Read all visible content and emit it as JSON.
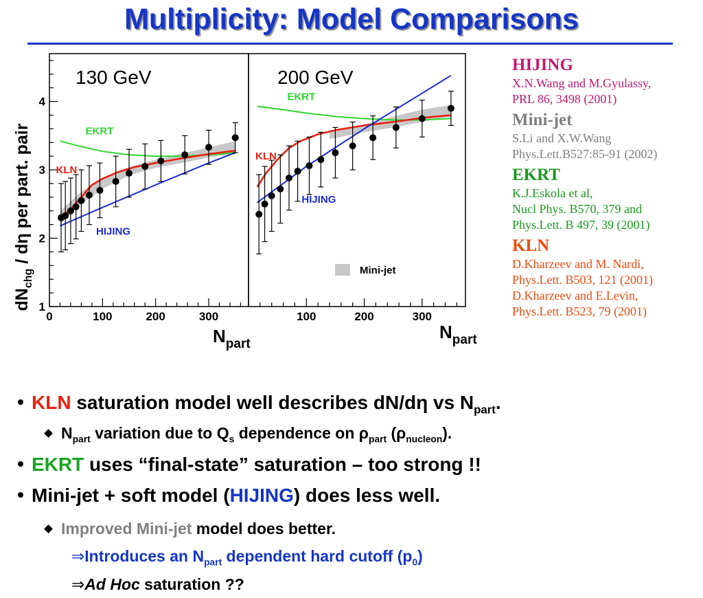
{
  "title": "Multiplicity: Model Comparisons",
  "chart_data": [
    {
      "type": "scatter",
      "panel_label": "130 GeV",
      "ylabel_main": "dN",
      "ylabel_sub": "chg",
      "ylabel_rest": " / dη per part. pair",
      "xlabel_main": "N",
      "xlabel_sub": "part",
      "xlim": [
        0,
        375
      ],
      "ylim": [
        1,
        4.7
      ],
      "xticks": [
        "0",
        "100",
        "200",
        "300"
      ],
      "yticks": [
        "1",
        "2",
        "3",
        "4"
      ],
      "points": {
        "x": [
          22,
          30,
          40,
          50,
          60,
          75,
          95,
          125,
          150,
          180,
          210,
          255,
          300,
          350
        ],
        "y": [
          2.3,
          2.33,
          2.4,
          2.46,
          2.55,
          2.63,
          2.7,
          2.83,
          2.95,
          3.05,
          3.13,
          3.22,
          3.33,
          3.47
        ],
        "err": [
          0.5,
          0.5,
          0.48,
          0.47,
          0.45,
          0.43,
          0.4,
          0.37,
          0.35,
          0.33,
          0.3,
          0.28,
          0.25,
          0.22
        ]
      },
      "series": [
        {
          "name": "EKRT",
          "color": "#2dd62d",
          "x": [
            20,
            60,
            100,
            150,
            200,
            250,
            300,
            350
          ],
          "y": [
            3.42,
            3.34,
            3.27,
            3.22,
            3.2,
            3.2,
            3.22,
            3.25
          ]
        },
        {
          "name": "KLN",
          "color": "#e8210f",
          "x": [
            20,
            40,
            60,
            80,
            100,
            130,
            160,
            200,
            250,
            300,
            350
          ],
          "y": [
            2.3,
            2.42,
            2.6,
            2.78,
            2.87,
            2.97,
            3.04,
            3.1,
            3.17,
            3.23,
            3.28
          ]
        },
        {
          "name": "HIJING",
          "color": "#1a2bd8",
          "x": [
            20,
            100,
            200,
            300,
            350
          ],
          "y": [
            2.18,
            2.45,
            2.78,
            3.1,
            3.25
          ]
        }
      ],
      "band": {
        "x": [
          20,
          60,
          100,
          150,
          200,
          250,
          300,
          350
        ],
        "lo": [
          2.2,
          2.5,
          2.72,
          2.92,
          3.03,
          3.1,
          3.18,
          3.23
        ],
        "hi": [
          2.4,
          2.68,
          2.88,
          3.04,
          3.15,
          3.24,
          3.33,
          3.42
        ]
      }
    },
    {
      "type": "scatter",
      "panel_label": "200 GeV",
      "xlabel_main": "N",
      "xlabel_sub": "part",
      "xlim": [
        0,
        375
      ],
      "ylim": [
        1,
        4.7
      ],
      "xticks": [
        "100",
        "200",
        "300"
      ],
      "points": {
        "x": [
          18,
          28,
          40,
          55,
          70,
          85,
          105,
          125,
          150,
          180,
          215,
          255,
          300,
          350
        ],
        "y": [
          2.35,
          2.5,
          2.62,
          2.72,
          2.88,
          2.98,
          3.06,
          3.15,
          3.25,
          3.35,
          3.47,
          3.62,
          3.75,
          3.9
        ],
        "err": [
          0.58,
          0.55,
          0.52,
          0.5,
          0.47,
          0.44,
          0.42,
          0.4,
          0.37,
          0.35,
          0.32,
          0.3,
          0.27,
          0.25
        ]
      },
      "series": [
        {
          "name": "EKRT",
          "color": "#2dd62d",
          "x": [
            15,
            60,
            100,
            150,
            200,
            250,
            300,
            350
          ],
          "y": [
            3.93,
            3.88,
            3.83,
            3.78,
            3.75,
            3.73,
            3.73,
            3.75
          ]
        },
        {
          "name": "KLN",
          "color": "#e8210f",
          "x": [
            15,
            30,
            50,
            70,
            90,
            120,
            150,
            200,
            250,
            300,
            350
          ],
          "y": [
            2.75,
            2.95,
            3.15,
            3.32,
            3.42,
            3.52,
            3.58,
            3.65,
            3.7,
            3.76,
            3.8
          ]
        },
        {
          "name": "HIJING",
          "color": "#1a2bd8",
          "x": [
            15,
            100,
            200,
            300,
            350
          ],
          "y": [
            2.52,
            3.05,
            3.6,
            4.12,
            4.38
          ]
        }
      ],
      "band": {
        "x": [
          140,
          200,
          250,
          300,
          350
        ],
        "lo": [
          3.45,
          3.55,
          3.62,
          3.7,
          3.78
        ],
        "hi": [
          3.55,
          3.66,
          3.78,
          3.88,
          3.95
        ]
      },
      "legend": {
        "label": "Mini-jet",
        "placement": "bottom-right"
      }
    }
  ],
  "references": [
    {
      "model": "HIJING",
      "color": "#c2186f",
      "lines": [
        "X.N.Wang and M.Gyulassy,",
        "PRL 86, 3498 (2001)"
      ]
    },
    {
      "model": "Mini-jet",
      "color": "#7f7f7f",
      "lines": [
        "S.Li and X.W.Wang",
        "Phys.Lett.B527:85-91 (2002)"
      ]
    },
    {
      "model": "EKRT",
      "color": "#179a1c",
      "lines": [
        "K.J.Eskola et al,",
        "Nucl Phys. B570, 379 and",
        "Phys.Lett. B 497, 39 (2001)"
      ]
    },
    {
      "model": "KLN",
      "color": "#ee4a10",
      "lines": [
        "D.Kharzeev and M. Nardi,",
        "Phys.Lett. B503, 121 (2001)",
        "D.Kharzeev and E.Levin,",
        "Phys.Lett. B523, 79 (2001)"
      ]
    }
  ],
  "bullets": {
    "b1": {
      "kln": "KLN",
      "text": " saturation model well describes dN/dη vs N",
      "sub": "part",
      "end": "."
    },
    "b1a": {
      "n": "N",
      "n_sub": "part",
      "text1": " variation due to Q",
      "q_sub": "s",
      "text2": " dependence on ρ",
      "rho_sub": "part",
      "text3": " (ρ",
      "nuc_sub": "nucleon",
      "text4": ")."
    },
    "b2": {
      "ekrt": "EKRT",
      "text": " uses “final-state” saturation – too strong !!"
    },
    "b3": {
      "text1": "Mini-jet + soft model (",
      "hijing": "HIJING",
      "text2": ") does less well."
    },
    "b3a": {
      "gray": "Improved Mini-jet",
      "text": " model does better."
    },
    "b3b": {
      "arrow": "⇒",
      "text1": "Introduces an N",
      "sub": "part",
      "text2": " dependent hard cutoff (p",
      "p_sub": "0",
      "text3": ")"
    },
    "b3c": {
      "arrow": "⇒",
      "italic": "Ad Hoc",
      "text": " saturation ??"
    }
  }
}
